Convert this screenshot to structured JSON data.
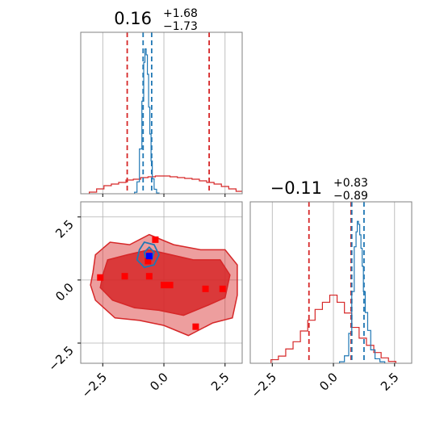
{
  "colors": {
    "prior": "#d62728",
    "posterior": "#1f77b4",
    "truth_marker": "#0000ff",
    "sample_marker": "#ff0000",
    "grid": "#b0b0b0",
    "frame": "#808080"
  },
  "titles": {
    "p1": {
      "center": "0.16",
      "plus": "+1.68",
      "minus": "−1.73"
    },
    "p2": {
      "center": "−0.11",
      "plus": "+0.83",
      "minus": "−0.89"
    }
  },
  "chart_data": {
    "type": "corner",
    "parameters": 2,
    "ticks": {
      "x": [
        -2.5,
        0.0,
        2.5
      ],
      "x_labels": [
        "−2.5",
        "0.0",
        "2.5"
      ],
      "y": [
        -2.5,
        0.0,
        2.5
      ],
      "y_labels": [
        "−2.5",
        "0.0",
        "2.5"
      ]
    },
    "xlim": [
      -3.4,
      3.2
    ],
    "ylim": [
      -3.3,
      3.1
    ],
    "grid": true,
    "legend": "none",
    "top_panel": {
      "prior_quantile_lines": [
        -1.5,
        1.85
      ],
      "posterior_quantile_lines": [
        -0.85,
        -0.5
      ],
      "prior_hist_x": [
        -2.9,
        -2.6,
        -2.3,
        -2.0,
        -1.7,
        -1.4,
        -1.1,
        -0.8,
        -0.5,
        -0.2,
        0.1,
        0.4,
        0.7,
        1.0,
        1.3,
        1.6,
        1.9,
        2.2,
        2.5,
        2.8,
        3.1
      ],
      "prior_hist_y": [
        0.01,
        0.03,
        0.05,
        0.06,
        0.07,
        0.085,
        0.09,
        0.1,
        0.105,
        0.11,
        0.11,
        0.105,
        0.1,
        0.095,
        0.09,
        0.08,
        0.07,
        0.06,
        0.045,
        0.03,
        0.015
      ],
      "posterior_hist_x": [
        -1.15,
        -1.05,
        -0.95,
        -0.85,
        -0.8,
        -0.75,
        -0.7,
        -0.65,
        -0.6,
        -0.55,
        -0.5,
        -0.45,
        -0.35,
        -0.25
      ],
      "posterior_hist_y": [
        0.01,
        0.08,
        0.3,
        0.62,
        0.88,
        0.97,
        0.93,
        0.8,
        0.58,
        0.4,
        0.22,
        0.1,
        0.03,
        0.005
      ]
    },
    "right_panel": {
      "prior_quantile_lines": [
        -1.0,
        0.72
      ],
      "posterior_quantile_lines": [
        0.75,
        1.25
      ],
      "prior_hist_x": [
        -2.4,
        -2.1,
        -1.8,
        -1.5,
        -1.2,
        -0.9,
        -0.6,
        -0.3,
        0.0,
        0.3,
        0.6,
        0.9,
        1.2,
        1.5,
        1.8,
        2.1,
        2.4
      ],
      "prior_hist_y": [
        0.01,
        0.02,
        0.04,
        0.06,
        0.09,
        0.12,
        0.15,
        0.17,
        0.19,
        0.17,
        0.14,
        0.1,
        0.07,
        0.05,
        0.03,
        0.015,
        0.005
      ],
      "posterior_hist_x": [
        0.35,
        0.55,
        0.7,
        0.8,
        0.9,
        0.95,
        1.0,
        1.05,
        1.1,
        1.15,
        1.2,
        1.25,
        1.35,
        1.45,
        1.6,
        1.8,
        2.0
      ],
      "posterior_hist_y": [
        0.01,
        0.05,
        0.2,
        0.48,
        0.78,
        0.88,
        0.95,
        0.93,
        0.86,
        0.77,
        0.65,
        0.48,
        0.34,
        0.22,
        0.09,
        0.03,
        0.01
      ]
    },
    "joint_panel": {
      "prior_contour_outer": [
        [
          -2.9,
          0.3
        ],
        [
          -2.8,
          1.0
        ],
        [
          -2.2,
          1.5
        ],
        [
          -1.4,
          1.4
        ],
        [
          -0.6,
          1.8
        ],
        [
          0.4,
          1.4
        ],
        [
          1.5,
          1.2
        ],
        [
          2.5,
          1.2
        ],
        [
          3.0,
          0.6
        ],
        [
          3.0,
          -0.6
        ],
        [
          2.8,
          -1.5
        ],
        [
          2.0,
          -1.7
        ],
        [
          1.0,
          -2.2
        ],
        [
          0.0,
          -1.8
        ],
        [
          -1.0,
          -1.6
        ],
        [
          -2.0,
          -1.5
        ],
        [
          -2.8,
          -0.8
        ],
        [
          -3.0,
          -0.2
        ]
      ],
      "prior_contour_inner": [
        [
          -2.5,
          0.2
        ],
        [
          -2.3,
          0.8
        ],
        [
          -1.5,
          1.0
        ],
        [
          -0.6,
          1.2
        ],
        [
          0.3,
          1.0
        ],
        [
          1.2,
          0.8
        ],
        [
          2.3,
          0.8
        ],
        [
          2.7,
          0.2
        ],
        [
          2.5,
          -0.7
        ],
        [
          1.8,
          -1.0
        ],
        [
          0.8,
          -1.4
        ],
        [
          -0.2,
          -1.2
        ],
        [
          -1.2,
          -1.1
        ],
        [
          -2.1,
          -0.8
        ],
        [
          -2.6,
          -0.3
        ]
      ],
      "posterior_contour_outer": [
        [
          -1.0,
          1.2
        ],
        [
          -0.8,
          1.5
        ],
        [
          -0.4,
          1.4
        ],
        [
          -0.2,
          1.0
        ],
        [
          -0.4,
          0.6
        ],
        [
          -0.8,
          0.5
        ],
        [
          -1.1,
          0.8
        ]
      ],
      "posterior_contour_inner": [
        [
          -0.8,
          1.1
        ],
        [
          -0.6,
          1.3
        ],
        [
          -0.4,
          1.1
        ],
        [
          -0.5,
          0.8
        ],
        [
          -0.75,
          0.85
        ]
      ],
      "red_markers": [
        [
          -0.35,
          1.6
        ],
        [
          -0.65,
          0.75
        ],
        [
          -2.6,
          0.1
        ],
        [
          -1.6,
          0.15
        ],
        [
          -0.6,
          0.15
        ],
        [
          0.0,
          -0.2
        ],
        [
          0.25,
          -0.2
        ],
        [
          1.7,
          -0.35
        ],
        [
          2.4,
          -0.35
        ],
        [
          1.3,
          -1.85
        ]
      ],
      "truth_marker": [
        -0.6,
        0.95
      ]
    }
  }
}
